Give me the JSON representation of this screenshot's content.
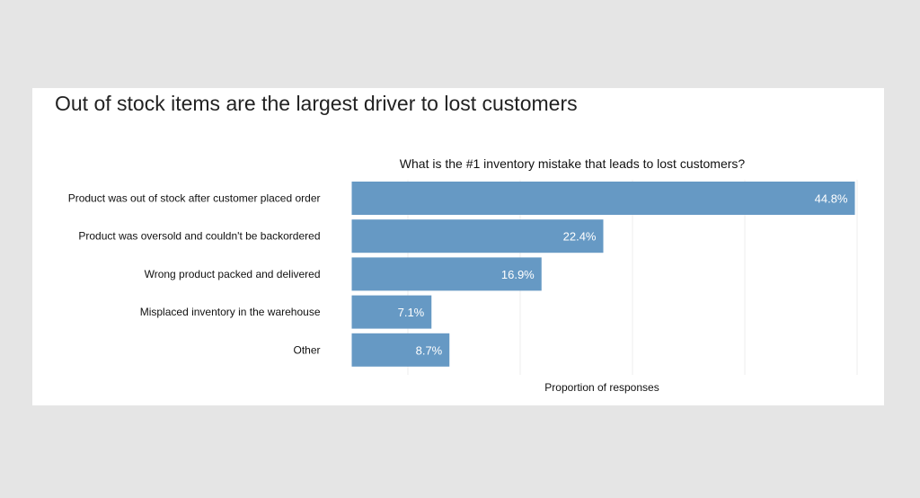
{
  "chart_data": {
    "type": "bar",
    "orientation": "horizontal",
    "title": "Out of stock items are the largest driver to lost customers",
    "subtitle": "What is the #1 inventory mistake that leads to lost customers?",
    "xlabel": "Proportion of responses",
    "ylabel": "",
    "categories": [
      "Product was out of stock after customer placed order",
      "Product was oversold and couldn't be backordered",
      "Wrong product packed and delivered",
      "Misplaced inventory in the warehouse",
      "Other"
    ],
    "values": [
      44.8,
      22.4,
      16.9,
      7.1,
      8.7
    ],
    "data_labels": [
      "44.8%",
      "22.4%",
      "16.9%",
      "7.1%",
      "8.7%"
    ],
    "xlim": [
      0,
      45
    ],
    "gridlines": [
      5,
      15,
      25,
      35,
      45
    ],
    "grid": true,
    "bar_color": "#6699c4",
    "background": "#e5e5e5"
  }
}
